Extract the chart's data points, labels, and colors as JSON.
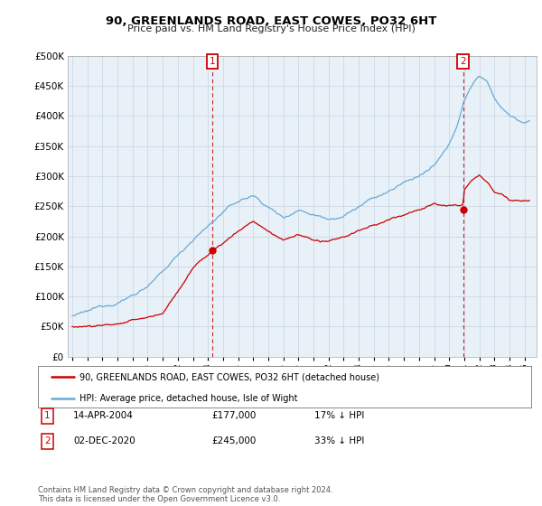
{
  "title": "90, GREENLANDS ROAD, EAST COWES, PO32 6HT",
  "subtitle": "Price paid vs. HM Land Registry's House Price Index (HPI)",
  "legend_entry1": "90, GREENLANDS ROAD, EAST COWES, PO32 6HT (detached house)",
  "legend_entry2": "HPI: Average price, detached house, Isle of Wight",
  "marker1_date": "14-APR-2004",
  "marker1_price": "£177,000",
  "marker1_pct": "17% ↓ HPI",
  "marker2_date": "02-DEC-2020",
  "marker2_price": "£245,000",
  "marker2_pct": "33% ↓ HPI",
  "footer": "Contains HM Land Registry data © Crown copyright and database right 2024.\nThis data is licensed under the Open Government Licence v3.0.",
  "ylim": [
    0,
    500000
  ],
  "yticks": [
    0,
    50000,
    100000,
    150000,
    200000,
    250000,
    300000,
    350000,
    400000,
    450000,
    500000
  ],
  "background_color": "#ffffff",
  "plot_bg_color": "#e8f0f8",
  "grid_color": "#c8d4e0",
  "hpi_color": "#6aaad4",
  "price_color": "#cc0000",
  "marker_color": "#cc0000",
  "dashed_line_color": "#cc0000",
  "t1": 2004.29,
  "p1": 177000,
  "t2": 2020.92,
  "p2": 245000,
  "xmin": 1994.7,
  "xmax": 2025.8
}
